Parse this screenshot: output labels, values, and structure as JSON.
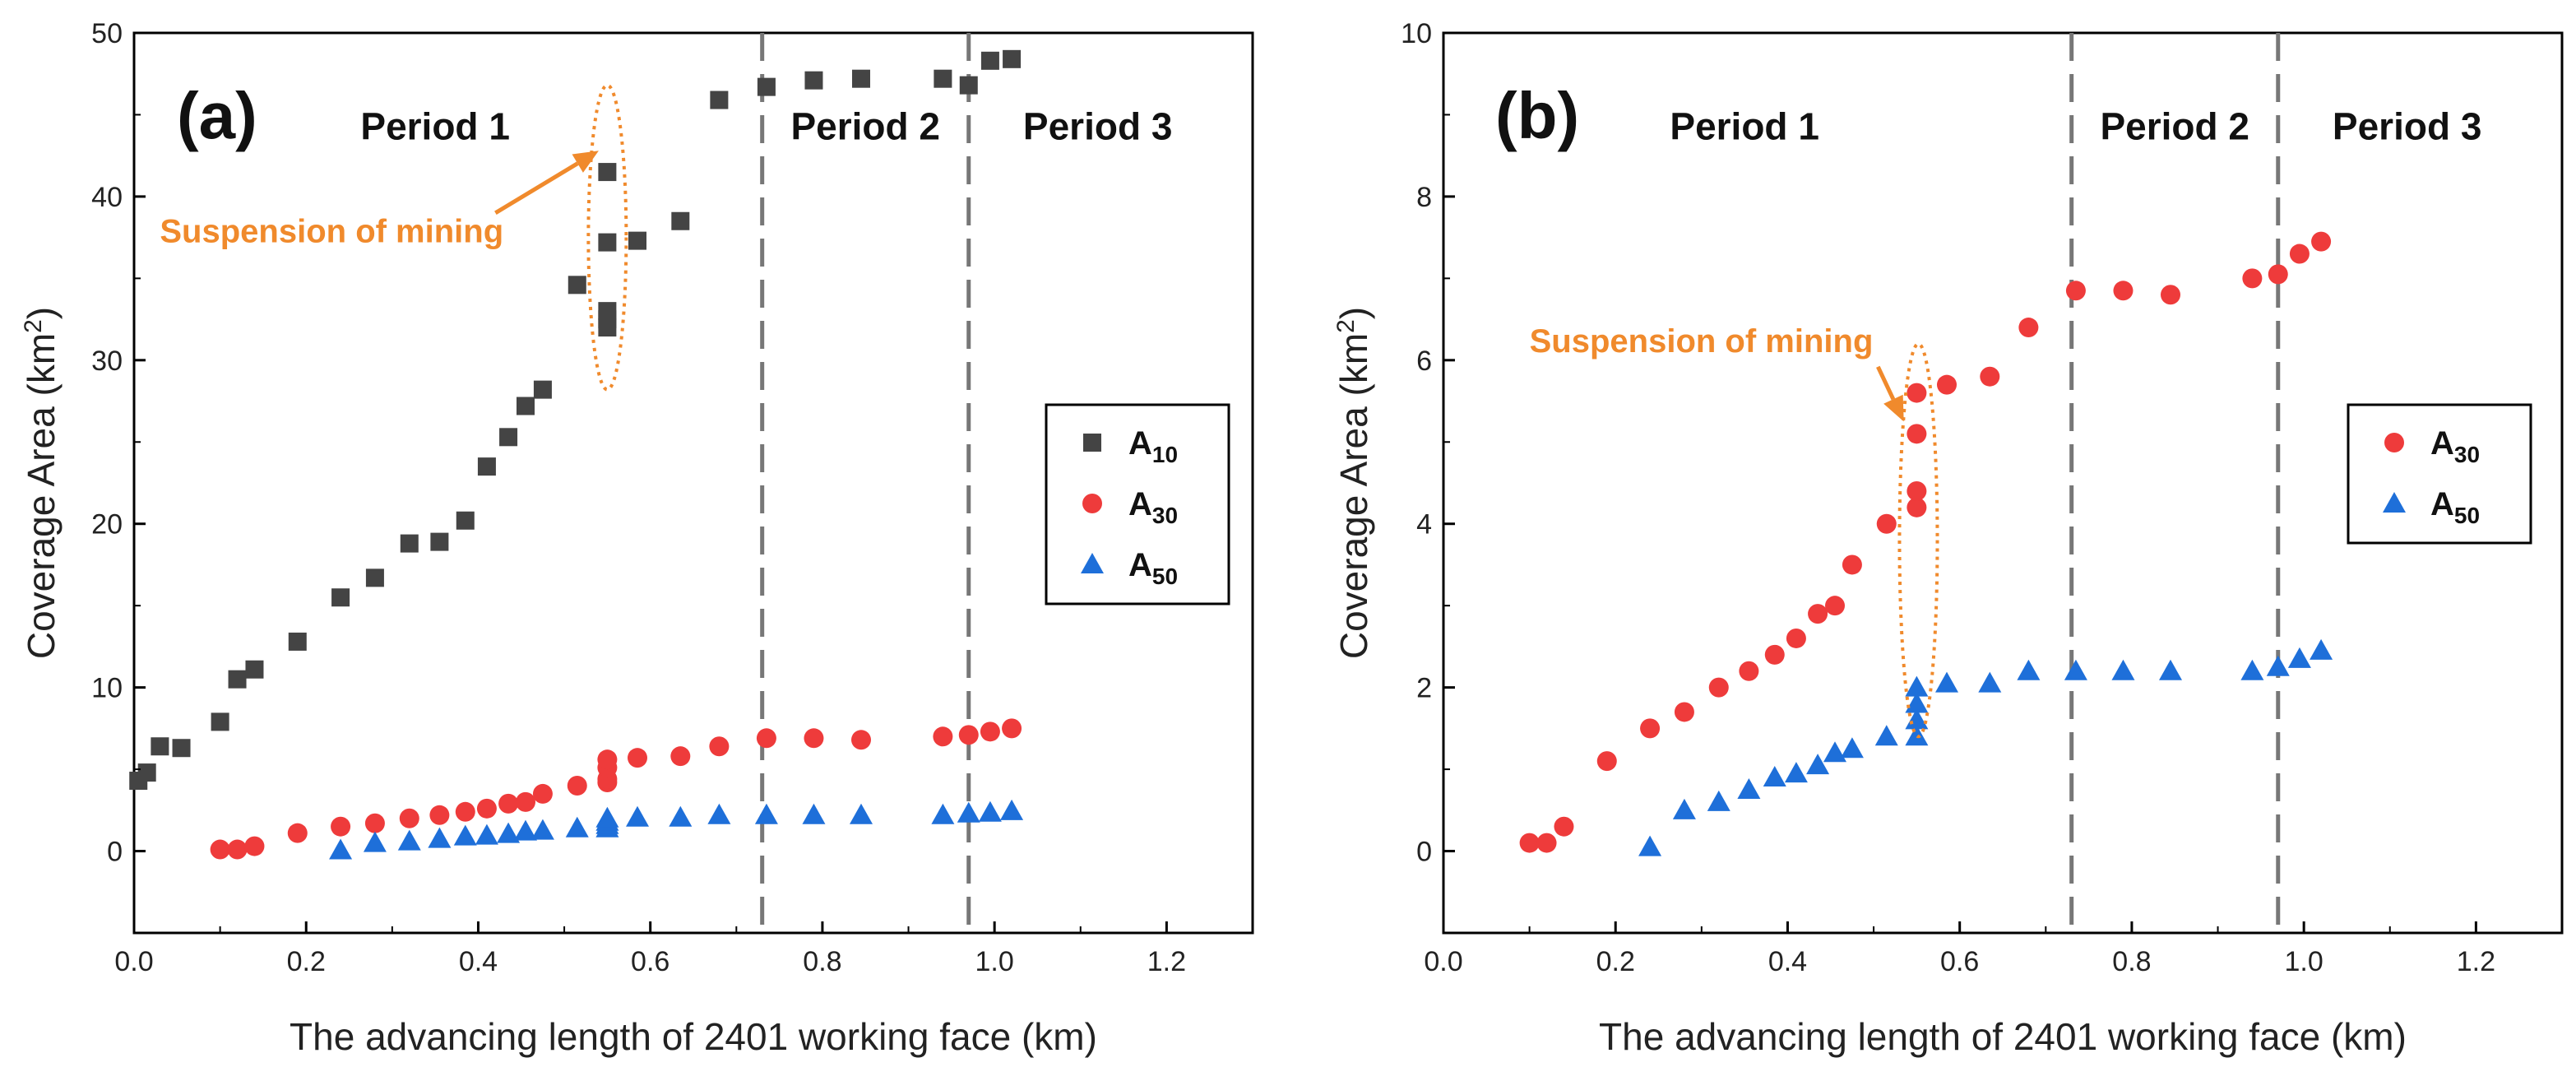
{
  "chart_data": [
    {
      "type": "scatter",
      "panel_label": "(a)",
      "xlabel": "The advancing length of 2401 working face (km)",
      "ylabel": "Coverage Area (km²)",
      "ylabel_main": "Coverage Area (km",
      "ylabel_sup": "2",
      "ylabel_close": ")",
      "xlim": [
        0.0,
        1.3
      ],
      "ylim": [
        -5,
        50
      ],
      "xticks": [
        0.0,
        0.2,
        0.4,
        0.6,
        0.8,
        1.0,
        1.2
      ],
      "xtick_labels": [
        "0.0",
        "0.2",
        "0.4",
        "0.6",
        "0.8",
        "1.0",
        "1.2"
      ],
      "yticks": [
        0,
        10,
        20,
        30,
        40,
        50
      ],
      "ytick_labels": [
        "0",
        "10",
        "20",
        "30",
        "40",
        "50"
      ],
      "period_lines": [
        0.73,
        0.97
      ],
      "periods": [
        {
          "label": "Period 1",
          "x": 0.35,
          "y": 43.5
        },
        {
          "label": "Period 2",
          "x": 0.85,
          "y": 43.5
        },
        {
          "label": "Period 3",
          "x": 1.12,
          "y": 43.5
        }
      ],
      "annotation": {
        "text": "Suspension of mining",
        "text_x": 0.03,
        "text_y": 37.2,
        "arrow_from": [
          0.42,
          39.0
        ],
        "arrow_to": [
          0.54,
          42.8
        ],
        "ellipse": {
          "cx": 0.55,
          "cy": 37.5,
          "rx": 0.022,
          "ry": 9.3
        }
      },
      "legend": {
        "position": "right",
        "entries": [
          {
            "base": "A",
            "sub": "10",
            "marker": "square",
            "color": "#444444"
          },
          {
            "base": "A",
            "sub": "30",
            "marker": "circle",
            "color": "#ee3b3b"
          },
          {
            "base": "A",
            "sub": "50",
            "marker": "triangle",
            "color": "#1e6fd9"
          }
        ]
      },
      "series": [
        {
          "name": "A10",
          "marker": "square",
          "color": "#444444",
          "x": [
            0.005,
            0.015,
            0.03,
            0.055,
            0.1,
            0.12,
            0.14,
            0.19,
            0.24,
            0.28,
            0.32,
            0.355,
            0.385,
            0.41,
            0.435,
            0.455,
            0.475,
            0.515,
            0.55,
            0.55,
            0.55,
            0.55,
            0.55,
            0.585,
            0.635,
            0.68,
            0.735,
            0.79,
            0.845,
            0.94,
            0.97,
            0.995,
            1.02
          ],
          "y": [
            4.3,
            4.8,
            6.4,
            6.3,
            7.9,
            10.5,
            11.1,
            12.8,
            15.5,
            16.7,
            18.8,
            18.9,
            20.2,
            23.5,
            25.3,
            27.2,
            28.2,
            34.6,
            32.0,
            33.0,
            37.2,
            41.5,
            32.5,
            37.3,
            38.5,
            45.9,
            46.7,
            47.1,
            47.2,
            47.2,
            46.8,
            48.3,
            48.4
          ]
        },
        {
          "name": "A30",
          "marker": "circle",
          "color": "#ee3b3b",
          "x": [
            0.1,
            0.12,
            0.14,
            0.19,
            0.24,
            0.28,
            0.32,
            0.355,
            0.385,
            0.41,
            0.435,
            0.455,
            0.475,
            0.515,
            0.55,
            0.55,
            0.55,
            0.55,
            0.585,
            0.635,
            0.68,
            0.735,
            0.79,
            0.845,
            0.94,
            0.97,
            0.995,
            1.02
          ],
          "y": [
            0.1,
            0.1,
            0.3,
            1.1,
            1.5,
            1.7,
            2.0,
            2.2,
            2.4,
            2.6,
            2.9,
            3.0,
            3.5,
            4.0,
            4.2,
            4.4,
            5.1,
            5.6,
            5.7,
            5.8,
            6.4,
            6.9,
            6.9,
            6.8,
            7.0,
            7.1,
            7.3,
            7.5
          ]
        },
        {
          "name": "A50",
          "marker": "triangle",
          "color": "#1e6fd9",
          "x": [
            0.24,
            0.28,
            0.32,
            0.355,
            0.385,
            0.41,
            0.435,
            0.455,
            0.475,
            0.515,
            0.55,
            0.55,
            0.55,
            0.55,
            0.585,
            0.635,
            0.68,
            0.735,
            0.79,
            0.845,
            0.94,
            0.97,
            0.995,
            1.02
          ],
          "y": [
            0.05,
            0.5,
            0.6,
            0.75,
            0.9,
            0.95,
            1.05,
            1.2,
            1.25,
            1.4,
            1.4,
            1.6,
            1.8,
            2.0,
            2.05,
            2.05,
            2.2,
            2.2,
            2.2,
            2.2,
            2.2,
            2.3,
            2.35,
            2.45
          ]
        }
      ]
    },
    {
      "type": "scatter",
      "panel_label": "(b)",
      "xlabel": "The advancing length of 2401 working face (km)",
      "ylabel": "Coverage Area (km²)",
      "ylabel_main": "Coverage Area (km",
      "ylabel_sup": "2",
      "ylabel_close": ")",
      "xlim": [
        0.0,
        1.3
      ],
      "ylim": [
        -1,
        10
      ],
      "xticks": [
        0.0,
        0.2,
        0.4,
        0.6,
        0.8,
        1.0,
        1.2
      ],
      "xtick_labels": [
        "0.0",
        "0.2",
        "0.4",
        "0.6",
        "0.8",
        "1.0",
        "1.2"
      ],
      "yticks": [
        0,
        2,
        4,
        6,
        8,
        10
      ],
      "ytick_labels": [
        "0",
        "2",
        "4",
        "6",
        "8",
        "10"
      ],
      "period_lines": [
        0.73,
        0.97
      ],
      "periods": [
        {
          "label": "Period 1",
          "x": 0.35,
          "y": 8.7
        },
        {
          "label": "Period 2",
          "x": 0.85,
          "y": 8.7
        },
        {
          "label": "Period 3",
          "x": 1.12,
          "y": 8.7
        }
      ],
      "annotation": {
        "text": "Suspension of mining",
        "text_x": 0.1,
        "text_y": 6.1,
        "arrow_from": [
          0.505,
          5.92
        ],
        "arrow_to": [
          0.535,
          5.25
        ],
        "ellipse": {
          "cx": 0.552,
          "cy": 3.8,
          "rx": 0.022,
          "ry": 2.4
        }
      },
      "legend": {
        "position": "right",
        "entries": [
          {
            "base": "A",
            "sub": "30",
            "marker": "circle",
            "color": "#ee3b3b"
          },
          {
            "base": "A",
            "sub": "50",
            "marker": "triangle",
            "color": "#1e6fd9"
          }
        ]
      },
      "series": [
        {
          "name": "A30",
          "marker": "circle",
          "color": "#ee3b3b",
          "x": [
            0.1,
            0.12,
            0.14,
            0.19,
            0.24,
            0.28,
            0.32,
            0.355,
            0.385,
            0.41,
            0.435,
            0.455,
            0.475,
            0.515,
            0.55,
            0.55,
            0.55,
            0.55,
            0.585,
            0.635,
            0.68,
            0.735,
            0.79,
            0.845,
            0.94,
            0.97,
            0.995,
            1.02
          ],
          "y": [
            0.1,
            0.1,
            0.3,
            1.1,
            1.5,
            1.7,
            2.0,
            2.2,
            2.4,
            2.6,
            2.9,
            3.0,
            3.5,
            4.0,
            4.2,
            4.4,
            5.1,
            5.6,
            5.7,
            5.8,
            6.4,
            6.85,
            6.85,
            6.8,
            7.0,
            7.05,
            7.3,
            7.45
          ]
        },
        {
          "name": "A50",
          "marker": "triangle",
          "color": "#1e6fd9",
          "x": [
            0.24,
            0.28,
            0.32,
            0.355,
            0.385,
            0.41,
            0.435,
            0.455,
            0.475,
            0.515,
            0.55,
            0.55,
            0.55,
            0.55,
            0.585,
            0.635,
            0.68,
            0.735,
            0.79,
            0.845,
            0.94,
            0.97,
            0.995,
            1.02
          ],
          "y": [
            0.05,
            0.5,
            0.6,
            0.75,
            0.9,
            0.95,
            1.05,
            1.2,
            1.25,
            1.4,
            1.4,
            1.6,
            1.8,
            2.0,
            2.05,
            2.05,
            2.2,
            2.2,
            2.2,
            2.2,
            2.2,
            2.25,
            2.35,
            2.45
          ]
        }
      ]
    }
  ]
}
